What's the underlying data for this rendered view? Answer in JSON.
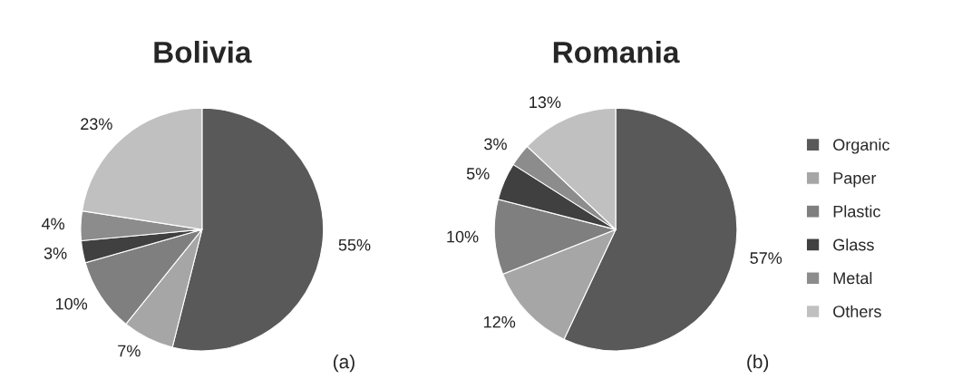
{
  "chart_data": [
    {
      "type": "pie",
      "title": "Bolivia",
      "categories": [
        null,
        null,
        null,
        null,
        null,
        null
      ],
      "values": [
        55,
        7,
        10,
        3,
        4,
        23
      ],
      "value_labels": [
        "55%",
        "7%",
        "10%",
        "3%",
        "4%",
        "23%"
      ],
      "colors": [
        "#595959",
        "#a6a6a6",
        "#7f7f7f",
        "#404040",
        "#8c8c8c",
        "#c0c0c0"
      ],
      "annotations": [
        "(a)"
      ],
      "legend": false
    },
    {
      "type": "pie",
      "title": "Romania",
      "categories": [
        "Organic",
        "Paper",
        "Plastic",
        "Glass",
        "Metal",
        "Others"
      ],
      "values": [
        57,
        12,
        10,
        5,
        3,
        13
      ],
      "value_labels": [
        "57%",
        "12%",
        "10%",
        "5%",
        "3%",
        "13%"
      ],
      "colors": [
        "#595959",
        "#a6a6a6",
        "#7f7f7f",
        "#404040",
        "#8c8c8c",
        "#c0c0c0"
      ],
      "annotations": [
        "(b)"
      ],
      "legend": "right"
    }
  ]
}
